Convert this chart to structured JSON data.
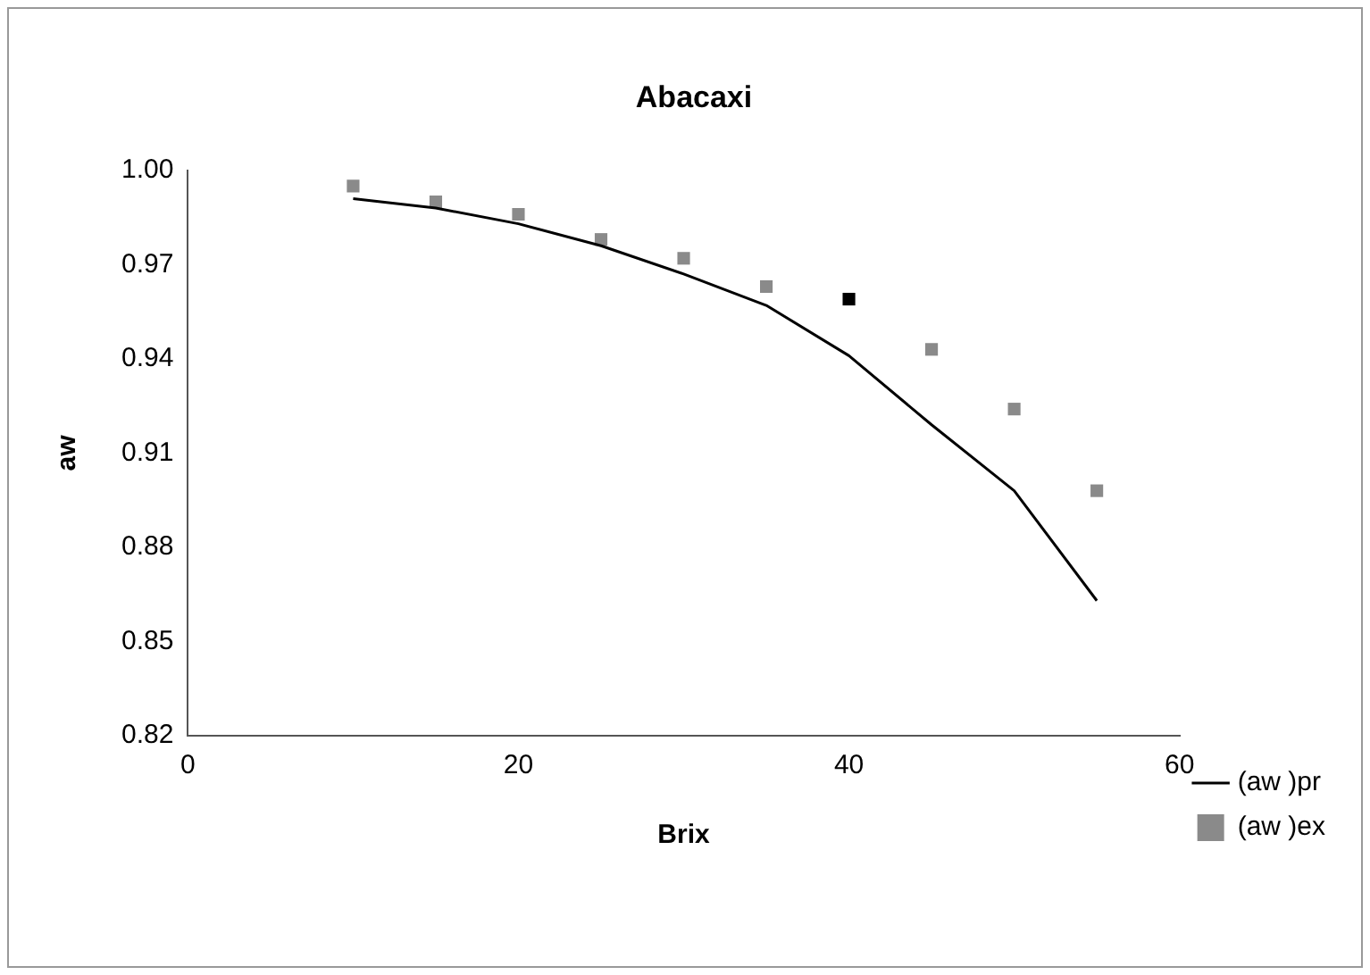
{
  "chart_data": {
    "type": "scatter",
    "title": "Abacaxi",
    "xlabel": "Brix",
    "ylabel": "aw",
    "xlim": [
      0,
      60
    ],
    "xticks": [
      0,
      20,
      40,
      60
    ],
    "ylim": [
      0.82,
      1.0
    ],
    "yticks": [
      {
        "value": 0.82,
        "label": "0.82"
      },
      {
        "value": 0.85,
        "label": "0.85"
      },
      {
        "value": 0.88,
        "label": "0.88"
      },
      {
        "value": 0.91,
        "label": "0.91"
      },
      {
        "value": 0.94,
        "label": "0.94"
      },
      {
        "value": 0.97,
        "label": "0.97"
      },
      {
        "value": 1.0,
        "label": "1.00"
      }
    ],
    "grid": false,
    "legend": "right",
    "series": [
      {
        "name": "(aw )pr",
        "type": "line",
        "color": "#000000",
        "marker": "none",
        "line_style": "solid",
        "x": [
          10,
          15,
          20,
          25,
          30,
          35,
          40,
          45,
          50,
          55
        ],
        "values": [
          0.991,
          0.988,
          0.983,
          0.976,
          0.967,
          0.957,
          0.941,
          0.919,
          0.898,
          0.863
        ]
      },
      {
        "name": "(aw )ex",
        "color": "#8a8a8a",
        "colors": [
          "#8a8a8a",
          "#8a8a8a",
          "#8a8a8a",
          "#8a8a8a",
          "#8a8a8a",
          "#8a8a8a",
          "#000000",
          "#8a8a8a",
          "#8a8a8a",
          "#8a8a8a"
        ],
        "marker": "square",
        "x": [
          10,
          15,
          20,
          25,
          30,
          35,
          40,
          45,
          50,
          55
        ],
        "values": [
          0.995,
          0.99,
          0.986,
          0.978,
          0.972,
          0.963,
          0.959,
          0.943,
          0.924,
          0.898
        ]
      }
    ]
  }
}
